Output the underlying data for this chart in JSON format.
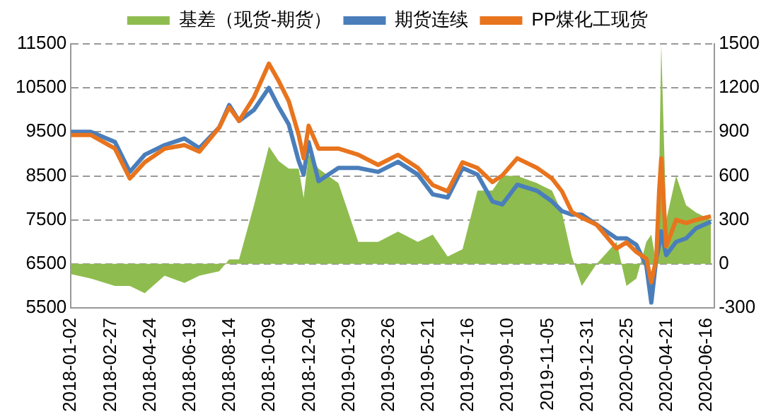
{
  "chart_data": {
    "type": "line",
    "legend": "top",
    "grid": "y",
    "marker": "none",
    "x": [
      "2018-01-02",
      "2018-01-30",
      "2018-03-05",
      "2018-03-26",
      "2018-04-16",
      "2018-05-14",
      "2018-06-11",
      "2018-07-02",
      "2018-07-30",
      "2018-08-13",
      "2018-08-27",
      "2018-09-17",
      "2018-10-08",
      "2018-10-22",
      "2018-11-05",
      "2018-11-19",
      "2018-11-26",
      "2018-12-03",
      "2018-12-17",
      "2019-01-14",
      "2019-02-11",
      "2019-03-11",
      "2019-04-08",
      "2019-05-06",
      "2019-05-27",
      "2019-06-17",
      "2019-07-08",
      "2019-07-29",
      "2019-08-19",
      "2019-09-02",
      "2019-09-23",
      "2019-10-21",
      "2019-11-11",
      "2019-11-25",
      "2019-12-09",
      "2019-12-23",
      "2020-01-13",
      "2020-02-10",
      "2020-02-24",
      "2020-03-09",
      "2020-03-23",
      "2020-03-30",
      "2020-04-06",
      "2020-04-10",
      "2020-04-13",
      "2020-04-20",
      "2020-05-04",
      "2020-05-18",
      "2020-06-01",
      "2020-06-22"
    ],
    "xlim": [
      "2018-01-02",
      "2020-06-27"
    ],
    "xticks": [
      "2018-01-02",
      "2018-02-27",
      "2018-04-24",
      "2018-06-19",
      "2018-08-14",
      "2018-10-09",
      "2018-12-04",
      "2019-01-29",
      "2019-03-26",
      "2019-05-21",
      "2019-07-16",
      "2019-09-10",
      "2019-11-05",
      "2019-12-31",
      "2020-02-25",
      "2020-04-21",
      "2020-06-16"
    ],
    "ylim": [
      5500,
      11500
    ],
    "yticks": [
      5500,
      6500,
      7500,
      8500,
      9500,
      10500,
      11500
    ],
    "y2lim": [
      -300,
      1500
    ],
    "y2ticks": [
      -300,
      0,
      300,
      600,
      900,
      1200,
      1500
    ],
    "series": [
      {
        "name": "基差（现货-期货）",
        "type": "area",
        "axis": "y2",
        "color": "#8fbc4f",
        "values": [
          -70,
          -100,
          -150,
          -150,
          -200,
          -80,
          -130,
          -80,
          -50,
          30,
          30,
          400,
          800,
          700,
          650,
          650,
          450,
          750,
          650,
          550,
          150,
          150,
          220,
          150,
          200,
          50,
          100,
          500,
          500,
          600,
          600,
          550,
          500,
          350,
          50,
          -150,
          0,
          150,
          -150,
          -100,
          150,
          200,
          0,
          600,
          1500,
          300,
          600,
          400,
          350,
          300
        ]
      },
      {
        "name": "期货连续",
        "type": "line",
        "color": "#4a7ebb",
        "values": [
          9500,
          9500,
          9270,
          8590,
          8980,
          9200,
          9350,
          9130,
          9600,
          10110,
          9750,
          10000,
          10500,
          10060,
          9670,
          8840,
          8530,
          9270,
          8380,
          8680,
          8680,
          8590,
          8820,
          8530,
          8080,
          8010,
          8680,
          8530,
          7920,
          7850,
          8300,
          8160,
          7920,
          7700,
          7620,
          7620,
          7390,
          7080,
          7080,
          6930,
          6460,
          5620,
          6620,
          6930,
          7240,
          6700,
          7000,
          7080,
          7310,
          7460
        ]
      },
      {
        "name": "PP煤化工现货",
        "type": "line",
        "color": "#e8741e",
        "values": [
          9430,
          9430,
          9120,
          8440,
          8810,
          9120,
          9200,
          9050,
          9600,
          10060,
          9750,
          10290,
          11050,
          10650,
          10200,
          9430,
          8900,
          9640,
          9120,
          9120,
          8980,
          8750,
          8980,
          8680,
          8290,
          8150,
          8810,
          8680,
          8360,
          8510,
          8900,
          8680,
          8440,
          8150,
          7680,
          7550,
          7390,
          6850,
          6990,
          6770,
          6620,
          6080,
          6620,
          8150,
          8900,
          6900,
          7500,
          7430,
          7500,
          7580
        ]
      }
    ]
  }
}
